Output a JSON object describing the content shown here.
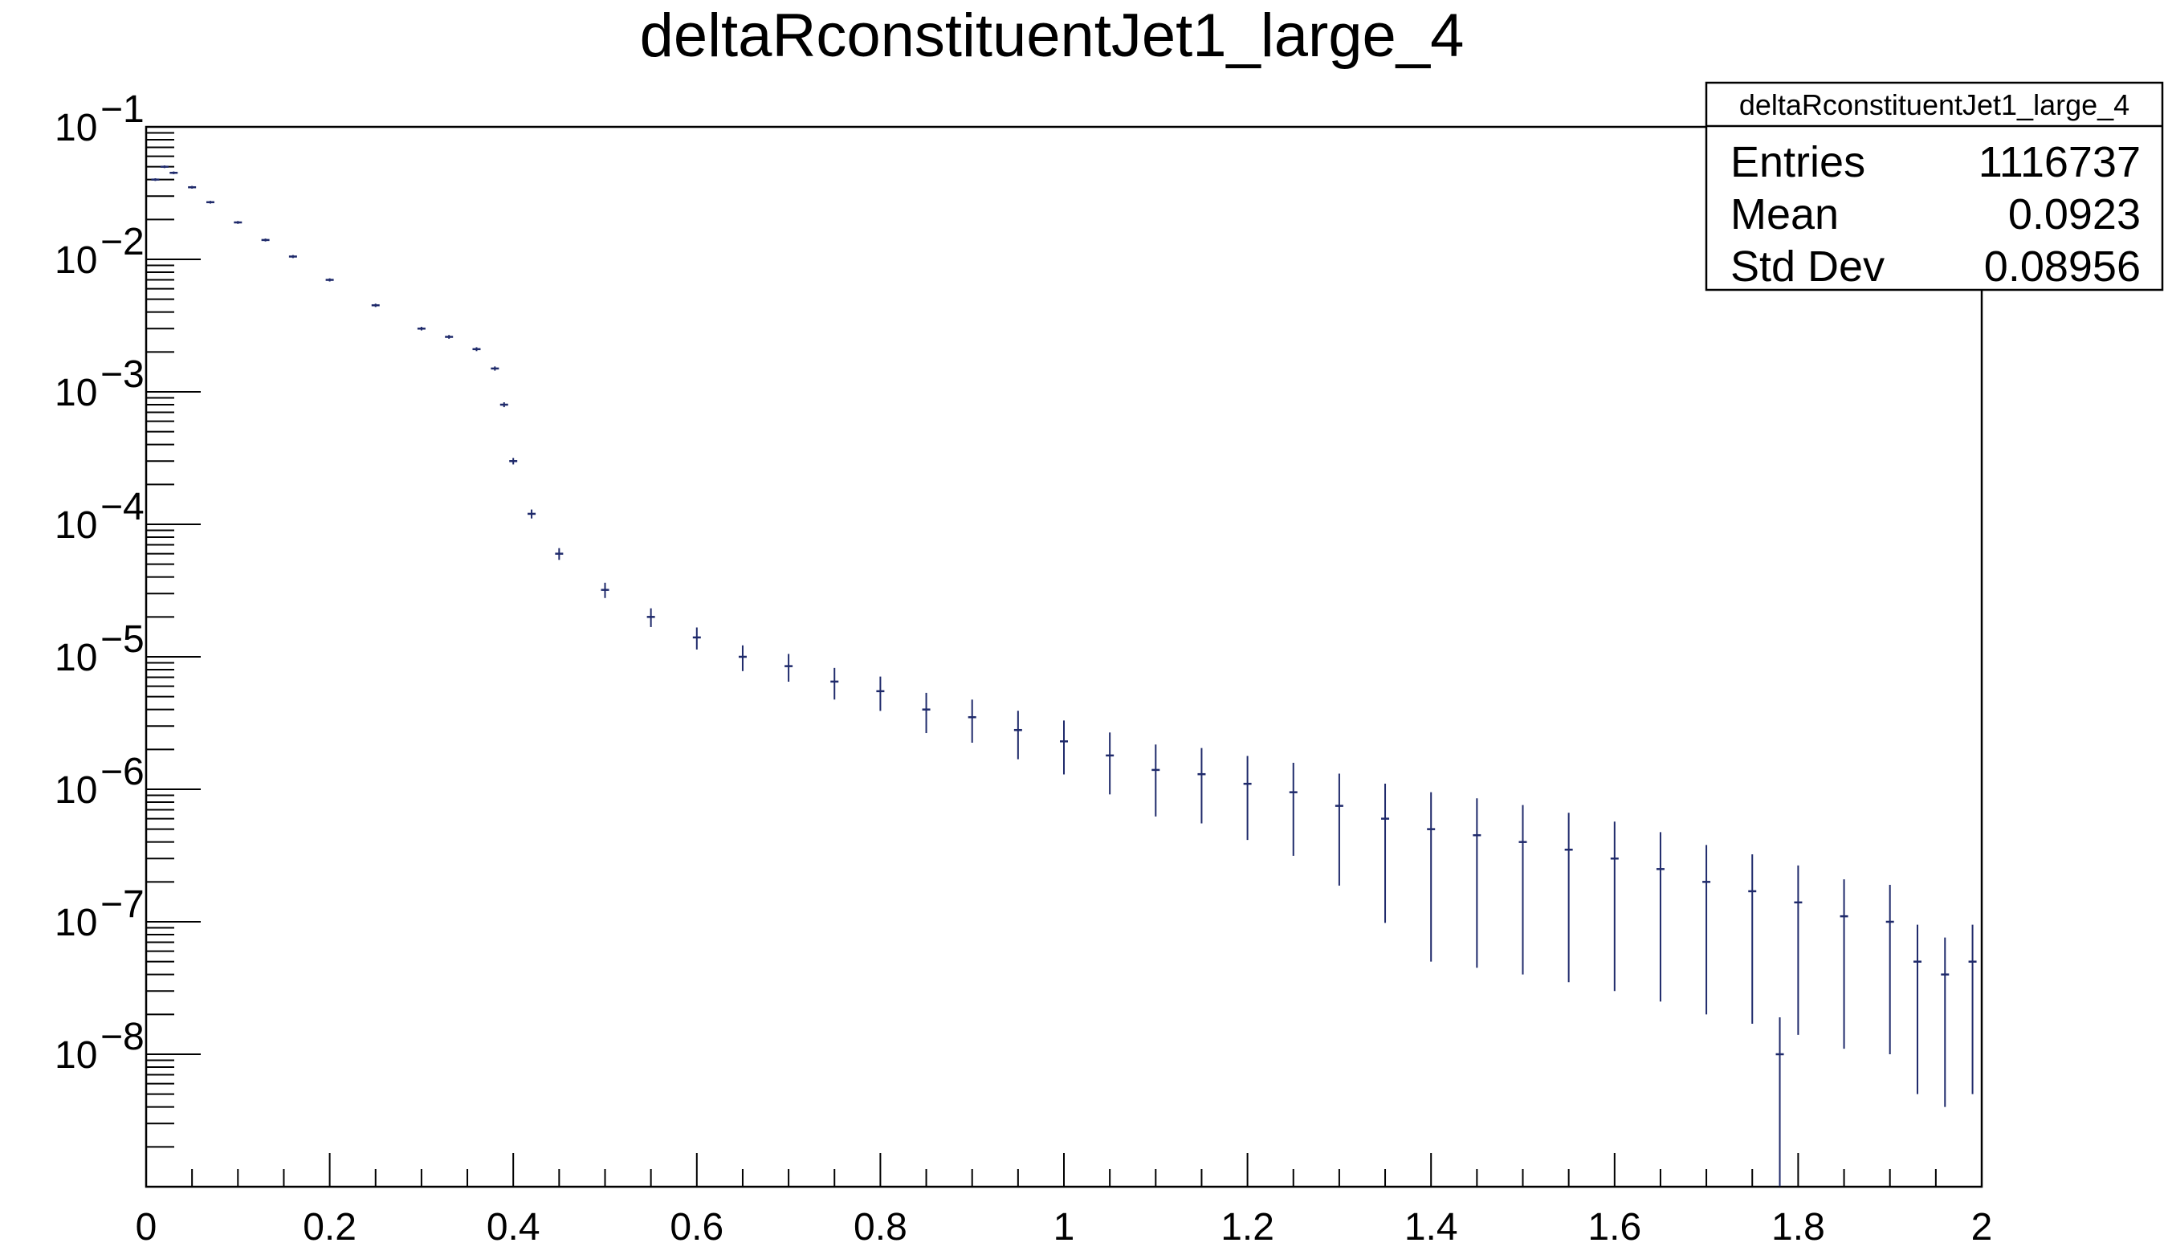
{
  "chart_data": {
    "type": "scatter",
    "title": "deltaRconstituentJet1_large_4",
    "xlabel": "",
    "ylabel": "",
    "xlim": [
      0,
      2
    ],
    "ylim": [
      1e-09,
      0.1
    ],
    "y_scale": "log",
    "grid": false,
    "marker_color": "#1f2a6b",
    "x_tick_labels": [
      {
        "value": 0,
        "label": "0"
      },
      {
        "value": 0.2,
        "label": "0.2"
      },
      {
        "value": 0.4,
        "label": "0.4"
      },
      {
        "value": 0.6,
        "label": "0.6"
      },
      {
        "value": 0.8,
        "label": "0.8"
      },
      {
        "value": 1.0,
        "label": "1"
      },
      {
        "value": 1.2,
        "label": "1.2"
      },
      {
        "value": 1.4,
        "label": "1.4"
      },
      {
        "value": 1.6,
        "label": "1.6"
      },
      {
        "value": 1.8,
        "label": "1.8"
      },
      {
        "value": 2.0,
        "label": "2"
      }
    ],
    "y_tick_labels": [
      {
        "value": 0.1,
        "base": "10",
        "exp": "−1"
      },
      {
        "value": 0.01,
        "base": "10",
        "exp": "−2"
      },
      {
        "value": 0.001,
        "base": "10",
        "exp": "−3"
      },
      {
        "value": 0.0001,
        "base": "10",
        "exp": "−4"
      },
      {
        "value": 1e-05,
        "base": "10",
        "exp": "−5"
      },
      {
        "value": 1e-06,
        "base": "10",
        "exp": "−6"
      },
      {
        "value": 1e-07,
        "base": "10",
        "exp": "−7"
      },
      {
        "value": 1e-08,
        "base": "10",
        "exp": "−8"
      }
    ],
    "series": [
      {
        "x": [
          0.01,
          0.02,
          0.03,
          0.05,
          0.07,
          0.1,
          0.13,
          0.16,
          0.2,
          0.25,
          0.3,
          0.33,
          0.36,
          0.38,
          0.39,
          0.4,
          0.42,
          0.45,
          0.5,
          0.55,
          0.6,
          0.65,
          0.7,
          0.75,
          0.8,
          0.85,
          0.9,
          0.95,
          1.0,
          1.05,
          1.1,
          1.15,
          1.2,
          1.25,
          1.3,
          1.35,
          1.4,
          1.45,
          1.5,
          1.55,
          1.6,
          1.65,
          1.7,
          1.75,
          1.78,
          1.8,
          1.85,
          1.9,
          1.93,
          1.96,
          1.99
        ],
        "y": [
          0.04,
          0.05,
          0.045,
          0.035,
          0.027,
          0.019,
          0.014,
          0.0105,
          0.007,
          0.0045,
          0.003,
          0.0026,
          0.0021,
          0.0015,
          0.0008,
          0.0003,
          0.00012,
          6e-05,
          3.2e-05,
          2e-05,
          1.4e-05,
          1e-05,
          8.5e-06,
          6.5e-06,
          5.5e-06,
          4e-06,
          3.5e-06,
          2.8e-06,
          2.3e-06,
          1.8e-06,
          1.4e-06,
          1.3e-06,
          1.1e-06,
          9.5e-07,
          7.5e-07,
          6e-07,
          5e-07,
          4.5e-07,
          4e-07,
          3.5e-07,
          3e-07,
          2.5e-07,
          2e-07,
          1.7e-07,
          1e-08,
          1.4e-07,
          1.1e-07,
          1e-07,
          5e-08,
          4e-08,
          5e-08
        ]
      }
    ],
    "stats_box": {
      "title": "deltaRconstituentJet1_large_4",
      "rows": [
        {
          "label": "Entries",
          "value": "1116737"
        },
        {
          "label": "Mean",
          "value": "0.0923"
        },
        {
          "label": "Std Dev",
          "value": "0.08956"
        }
      ]
    }
  }
}
